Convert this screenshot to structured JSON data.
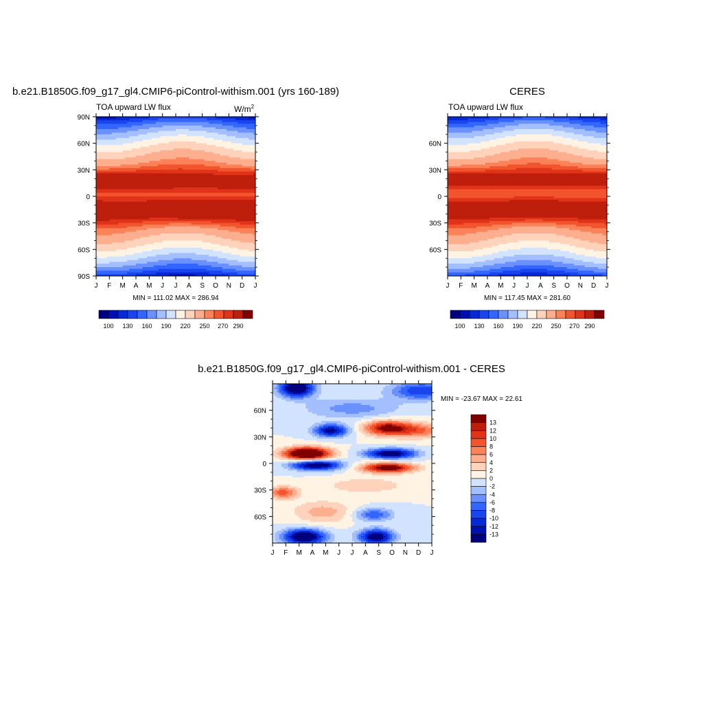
{
  "colors": {
    "ramp_full": [
      "#00007f",
      "#0010b0",
      "#0628d6",
      "#1a44ee",
      "#3366ff",
      "#6b91ff",
      "#a4bfff",
      "#d2e3ff",
      "#fff3e3",
      "#ffd2bc",
      "#fdae8f",
      "#fb8259",
      "#f2542d",
      "#e0331a",
      "#be1e0c",
      "#800000"
    ],
    "ramp_diff": [
      "#00007f",
      "#0010b0",
      "#0628d6",
      "#1a44ee",
      "#3366ff",
      "#6b91ff",
      "#a4bfff",
      "#d2e3ff",
      "#fff3e3",
      "#ffd2bc",
      "#fdae8f",
      "#fb8259",
      "#f2542d",
      "#e0331a",
      "#be1e0c",
      "#800000"
    ]
  },
  "chart_data": [
    {
      "type": "heatmap",
      "id": "model",
      "title": "b.e21.B1850G.f09_g17_gl4.CMIP6-piControl-withism.001 (yrs 160-189)",
      "left_label": "TOA upward LW flux",
      "units_base": "W/m",
      "units_exp": "2",
      "x_ticks": [
        "J",
        "F",
        "M",
        "A",
        "M",
        "J",
        "J",
        "A",
        "S",
        "O",
        "N",
        "D",
        "J"
      ],
      "y_ticks": [
        "90N",
        "60N",
        "30N",
        "0",
        "30S",
        "60S",
        "90S"
      ],
      "ylim": [
        -90,
        90
      ],
      "stats": "MIN = 111.02 MAX = 286.94",
      "min": 111.02,
      "max": 286.94,
      "colorbar_labels": [
        "100",
        "130",
        "160",
        "190",
        "220",
        "250",
        "270",
        "290"
      ]
    },
    {
      "type": "heatmap",
      "id": "obs",
      "title": "CERES",
      "left_label": "TOA upward LW flux",
      "x_ticks": [
        "J",
        "F",
        "M",
        "A",
        "M",
        "J",
        "J",
        "A",
        "S",
        "O",
        "N",
        "D",
        "J"
      ],
      "y_ticks": [
        "60N",
        "30N",
        "0",
        "30S",
        "60S"
      ],
      "ylim": [
        -90,
        90
      ],
      "stats": "MIN = 117.45 MAX = 281.60",
      "min": 117.45,
      "max": 281.6,
      "colorbar_labels": [
        "100",
        "130",
        "160",
        "190",
        "220",
        "250",
        "270",
        "290"
      ]
    },
    {
      "type": "heatmap",
      "id": "diff",
      "title": "b.e21.B1850G.f09_g17_gl4.CMIP6-piControl-withism.001 - CERES",
      "x_ticks": [
        "J",
        "F",
        "M",
        "A",
        "M",
        "J",
        "J",
        "A",
        "S",
        "O",
        "N",
        "D",
        "J"
      ],
      "y_ticks": [
        "60N",
        "30N",
        "0",
        "30S",
        "60S"
      ],
      "ylim": [
        -90,
        90
      ],
      "stats": "MIN = -23.67 MAX =  22.61",
      "min": -23.67,
      "max": 22.61,
      "colorbar_labels": [
        "13",
        "12",
        "10",
        "8",
        "6",
        "4",
        "2",
        "0",
        "-2",
        "-4",
        "-6",
        "-8",
        "-10",
        "-12",
        "-13"
      ]
    }
  ]
}
